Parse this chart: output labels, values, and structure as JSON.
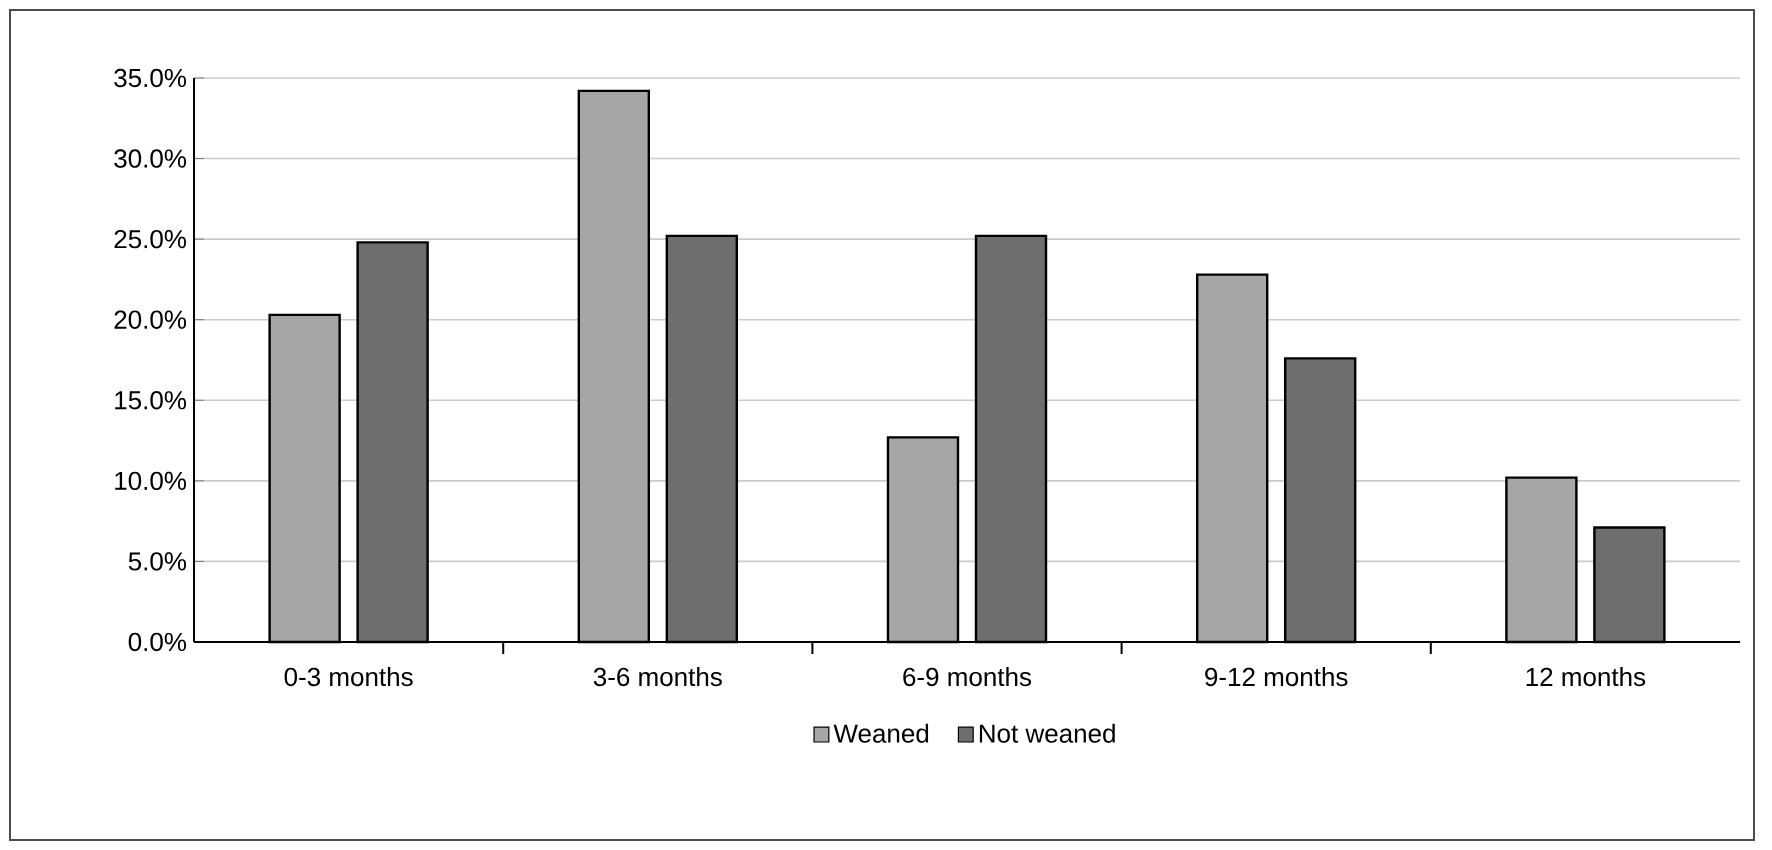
{
  "chart_data": {
    "type": "bar",
    "categories": [
      "0-3 months",
      "3-6 months",
      "6-9 months",
      "9-12 months",
      "12 months"
    ],
    "series": [
      {
        "name": "Weaned",
        "color": "#a6a6a6",
        "values": [
          20.3,
          34.2,
          12.7,
          22.8,
          10.2
        ]
      },
      {
        "name": "Not weaned",
        "color": "#6e6e6e",
        "values": [
          24.8,
          25.2,
          25.2,
          17.6,
          7.1
        ]
      }
    ],
    "ylim": [
      0,
      35
    ],
    "yticks": [
      {
        "value": 0,
        "label": "0.0%"
      },
      {
        "value": 5,
        "label": "5.0%"
      },
      {
        "value": 10,
        "label": "10.0%"
      },
      {
        "value": 15,
        "label": "15.0%"
      },
      {
        "value": 20,
        "label": "20.0%"
      },
      {
        "value": 25,
        "label": "25.0%"
      },
      {
        "value": 30,
        "label": "30.0%"
      },
      {
        "value": 35,
        "label": "35.0%"
      }
    ],
    "grid": "y",
    "legend": "bottom"
  }
}
